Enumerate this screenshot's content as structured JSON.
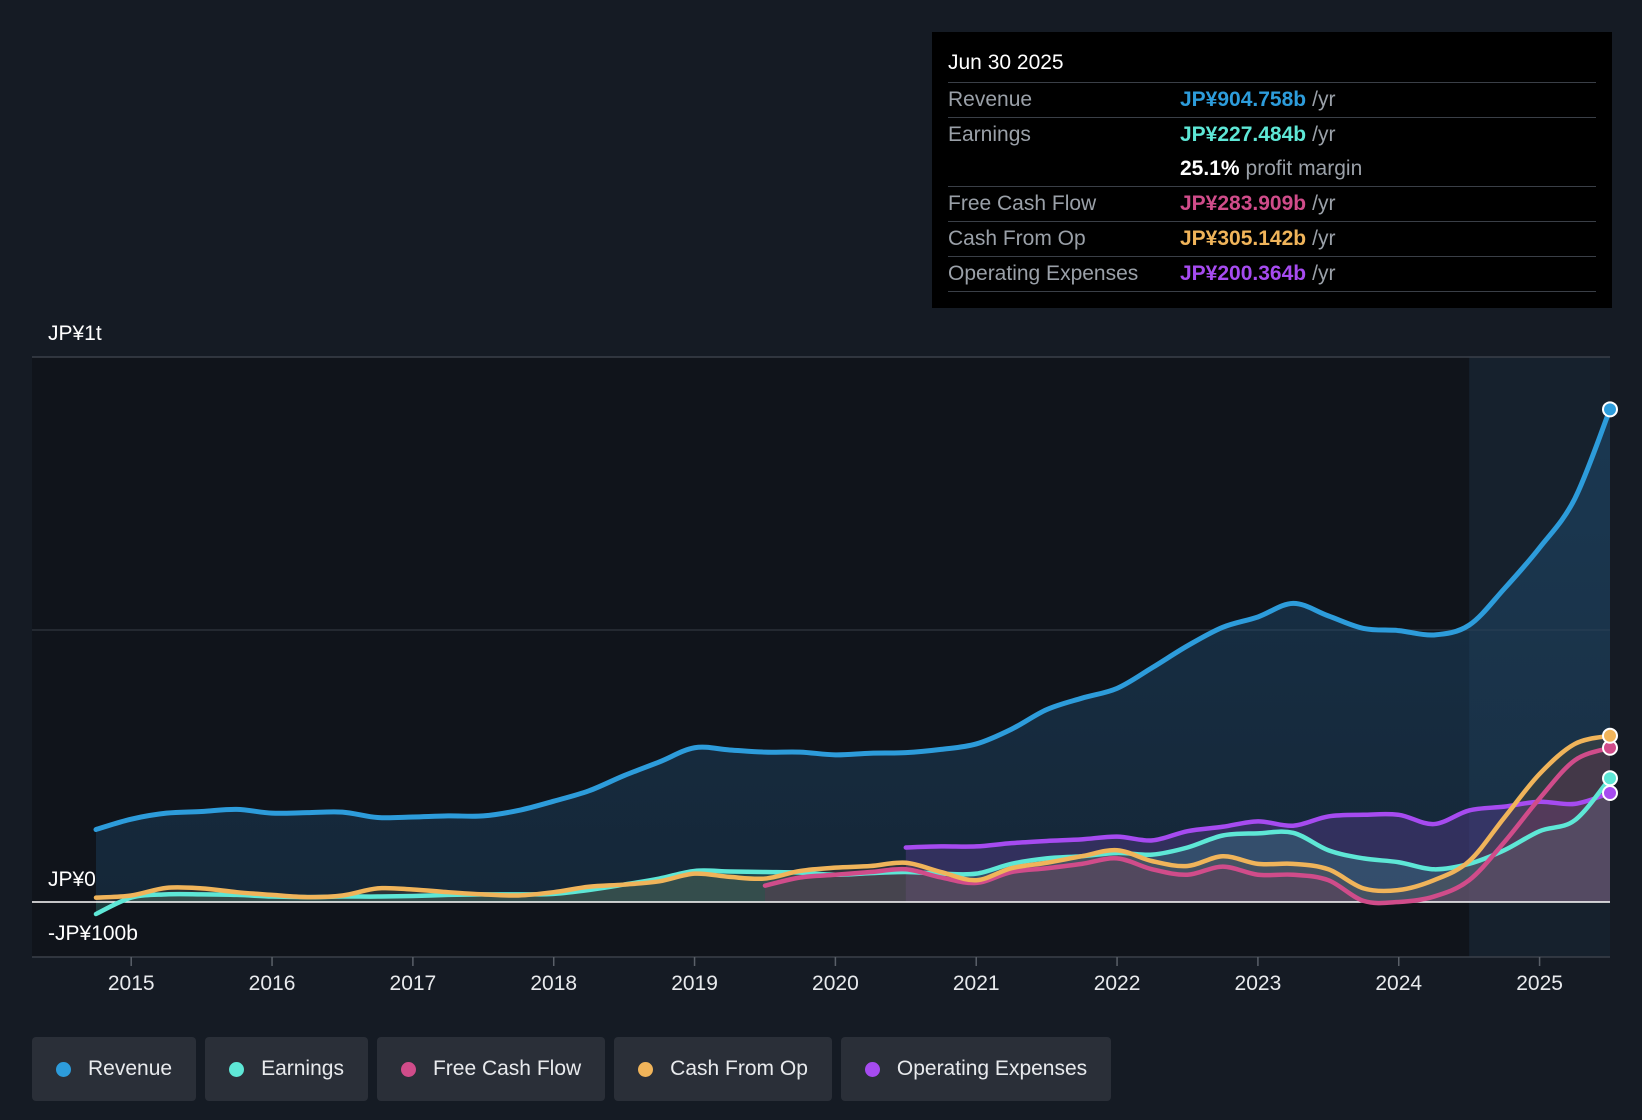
{
  "chart_data": {
    "type": "line",
    "y_axis": {
      "top_label": "JP¥1t",
      "zero_label": "JP¥0",
      "bottom_label": "-JP¥100b",
      "ylim": [
        -100,
        1000
      ],
      "unit": "JP¥ billions"
    },
    "x_axis": {
      "ticks": [
        "2015",
        "2016",
        "2017",
        "2018",
        "2019",
        "2020",
        "2021",
        "2022",
        "2023",
        "2024",
        "2025"
      ],
      "xlim": [
        2014.75,
        2025.5
      ]
    },
    "highlight_from": 2024.5,
    "series": [
      {
        "name": "Revenue",
        "color": "#2d9cdb",
        "x": [
          2014.75,
          2015.0,
          2015.25,
          2015.5,
          2015.75,
          2016.0,
          2016.25,
          2016.5,
          2016.75,
          2017.0,
          2017.25,
          2017.5,
          2017.75,
          2018.0,
          2018.25,
          2018.5,
          2018.75,
          2019.0,
          2019.25,
          2019.5,
          2019.75,
          2020.0,
          2020.25,
          2020.5,
          2020.75,
          2021.0,
          2021.25,
          2021.5,
          2021.75,
          2022.0,
          2022.25,
          2022.5,
          2022.75,
          2023.0,
          2023.25,
          2023.5,
          2023.75,
          2024.0,
          2024.25,
          2024.5,
          2024.75,
          2025.0,
          2025.25,
          2025.5
        ],
        "values": [
          133,
          152,
          163,
          166,
          170,
          163,
          164,
          165,
          155,
          156,
          158,
          158,
          168,
          185,
          204,
          232,
          257,
          283,
          279,
          275,
          275,
          270,
          273,
          274,
          280,
          290,
          317,
          353,
          374,
          392,
          430,
          470,
          504,
          523,
          548,
          525,
          502,
          498,
          490,
          508,
          575,
          650,
          740,
          904
        ]
      },
      {
        "name": "Earnings",
        "color": "#5ee7d6",
        "x": [
          2014.75,
          2015.0,
          2015.25,
          2015.5,
          2015.75,
          2016.0,
          2016.25,
          2016.5,
          2016.75,
          2017.0,
          2017.25,
          2017.5,
          2017.75,
          2018.0,
          2018.25,
          2018.5,
          2018.75,
          2019.0,
          2019.25,
          2019.5,
          2019.75,
          2020.0,
          2020.25,
          2020.5,
          2020.75,
          2021.0,
          2021.25,
          2021.5,
          2021.75,
          2022.0,
          2022.25,
          2022.5,
          2022.75,
          2023.0,
          2023.25,
          2023.5,
          2023.75,
          2024.0,
          2024.25,
          2024.5,
          2024.75,
          2025.0,
          2025.25,
          2025.5
        ],
        "values": [
          -22,
          8,
          14,
          14,
          13,
          10,
          9,
          10,
          10,
          11,
          13,
          14,
          14,
          15,
          22,
          32,
          43,
          57,
          56,
          55,
          54,
          50,
          53,
          55,
          52,
          52,
          70,
          80,
          84,
          90,
          87,
          100,
          122,
          126,
          127,
          95,
          80,
          73,
          60,
          70,
          95,
          130,
          150,
          227
        ]
      },
      {
        "name": "Free Cash Flow",
        "color": "#d04c8a",
        "x": [
          2019.5,
          2019.75,
          2020.0,
          2020.25,
          2020.5,
          2020.75,
          2021.0,
          2021.25,
          2021.5,
          2021.75,
          2022.0,
          2022.25,
          2022.5,
          2022.75,
          2023.0,
          2023.25,
          2023.5,
          2023.75,
          2024.0,
          2024.25,
          2024.5,
          2024.75,
          2025.0,
          2025.25,
          2025.5
        ],
        "values": [
          30,
          45,
          50,
          55,
          60,
          45,
          35,
          55,
          62,
          70,
          80,
          60,
          50,
          65,
          50,
          50,
          40,
          2,
          0,
          10,
          40,
          110,
          190,
          260,
          283
        ]
      },
      {
        "name": "Cash From Op",
        "color": "#f0b45a",
        "x": [
          2014.75,
          2015.0,
          2015.25,
          2015.5,
          2015.75,
          2016.0,
          2016.25,
          2016.5,
          2016.75,
          2017.0,
          2017.25,
          2017.5,
          2017.75,
          2018.0,
          2018.25,
          2018.5,
          2018.75,
          2019.0,
          2019.25,
          2019.5,
          2019.75,
          2020.0,
          2020.25,
          2020.5,
          2020.75,
          2021.0,
          2021.25,
          2021.5,
          2021.75,
          2022.0,
          2022.25,
          2022.5,
          2022.75,
          2023.0,
          2023.25,
          2023.5,
          2023.75,
          2024.0,
          2024.25,
          2024.5,
          2024.75,
          2025.0,
          2025.25,
          2025.5
        ],
        "values": [
          8,
          12,
          26,
          25,
          18,
          13,
          9,
          12,
          25,
          23,
          18,
          14,
          12,
          18,
          28,
          32,
          38,
          52,
          46,
          43,
          57,
          63,
          66,
          72,
          55,
          40,
          62,
          72,
          84,
          95,
          75,
          66,
          84,
          70,
          70,
          60,
          25,
          22,
          40,
          75,
          155,
          235,
          290,
          305
        ]
      },
      {
        "name": "Operating Expenses",
        "color": "#a64bf0",
        "x": [
          2020.5,
          2020.75,
          2021.0,
          2021.25,
          2021.5,
          2021.75,
          2022.0,
          2022.25,
          2022.5,
          2022.75,
          2023.0,
          2023.25,
          2023.5,
          2023.75,
          2024.0,
          2024.25,
          2024.5,
          2024.75,
          2025.0,
          2025.25,
          2025.5
        ],
        "values": [
          100,
          102,
          102,
          108,
          112,
          115,
          120,
          113,
          130,
          138,
          148,
          140,
          157,
          160,
          160,
          143,
          168,
          175,
          184,
          180,
          200
        ]
      }
    ]
  },
  "tooltip": {
    "date": "Jun 30 2025",
    "rows": [
      {
        "name": "Revenue",
        "value": "JP¥904.758b",
        "unit": "/yr",
        "color": "#2d9cdb"
      },
      {
        "name": "Earnings",
        "value": "JP¥227.484b",
        "unit": "/yr",
        "color": "#5ee7d6"
      },
      {
        "name": "Free Cash Flow",
        "value": "JP¥283.909b",
        "unit": "/yr",
        "color": "#d04c8a"
      },
      {
        "name": "Cash From Op",
        "value": "JP¥305.142b",
        "unit": "/yr",
        "color": "#f0b45a"
      },
      {
        "name": "Operating Expenses",
        "value": "JP¥200.364b",
        "unit": "/yr",
        "color": "#a64bf0"
      }
    ],
    "margin_value": "25.1%",
    "margin_label": "profit margin"
  },
  "legend": [
    {
      "label": "Revenue",
      "color": "#2d9cdb"
    },
    {
      "label": "Earnings",
      "color": "#5ee7d6"
    },
    {
      "label": "Free Cash Flow",
      "color": "#d04c8a"
    },
    {
      "label": "Cash From Op",
      "color": "#f0b45a"
    },
    {
      "label": "Operating Expenses",
      "color": "#a64bf0"
    }
  ]
}
